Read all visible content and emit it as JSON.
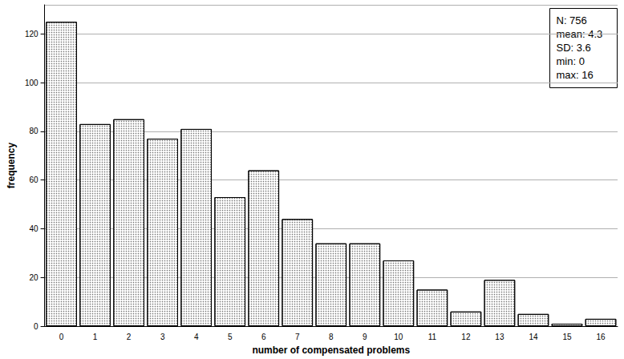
{
  "chart_data": {
    "type": "bar",
    "x_label": "number of compensated problems",
    "y_label": "frequency",
    "categories": [
      0,
      1,
      2,
      3,
      4,
      5,
      6,
      7,
      8,
      9,
      10,
      11,
      12,
      13,
      14,
      15,
      16
    ],
    "values": [
      125,
      83,
      85,
      77,
      81,
      53,
      64,
      44,
      34,
      34,
      27,
      15,
      6,
      19,
      5,
      1,
      3
    ],
    "color": "#ffffff",
    "ylim": [
      0,
      132
    ],
    "yticks": [
      0,
      20,
      40,
      60,
      80,
      100,
      120
    ],
    "grid": true,
    "annotations": [
      "N: 756",
      "mean: 4.3",
      "SD: 3.6",
      "min: 0",
      "max: 16"
    ]
  }
}
